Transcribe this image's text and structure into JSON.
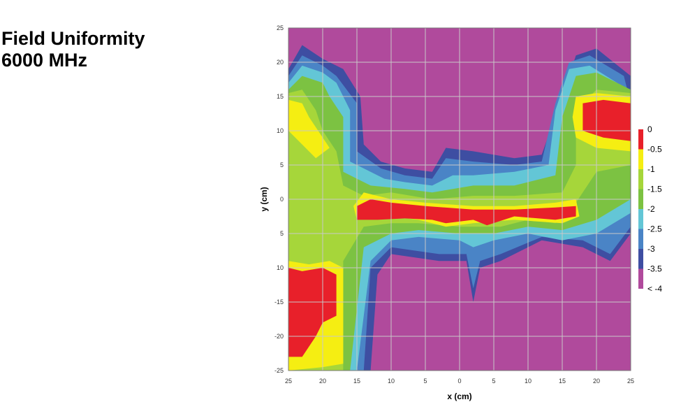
{
  "title": {
    "line1": "Field Uniformity",
    "line2": "6000 MHz"
  },
  "chart_data": {
    "type": "heatmap",
    "xlabel": "x (cm)",
    "ylabel": "y (cm)",
    "xlim": [
      -25,
      25
    ],
    "ylim": [
      -25,
      25
    ],
    "grid": true,
    "x_ticks": [
      "25",
      "20",
      "15",
      "10",
      "5",
      "0",
      "5",
      "10",
      "15",
      "20",
      "25"
    ],
    "y_ticks": [
      "25",
      "20",
      "15",
      "10",
      "5",
      "0",
      "5",
      "10",
      "-15",
      "-20",
      "-25"
    ],
    "legend_position": "right",
    "levels": [
      {
        "label": "0",
        "color": "#e8202a"
      },
      {
        "label": "-0.5",
        "color": "#f5ee12"
      },
      {
        "label": "-1",
        "color": "#a6d63a"
      },
      {
        "label": "-1.5",
        "color": "#7cc242"
      },
      {
        "label": "-2",
        "color": "#63c6d6"
      },
      {
        "label": "-2.5",
        "color": "#4a84c6"
      },
      {
        "label": "-3",
        "color": "#3e4ea2"
      },
      {
        "label": "-3.5",
        "color": "#b04a9c"
      },
      {
        "label": "< -4",
        "color": "#b04a9c"
      }
    ],
    "regions": [
      {
        "level": "-3",
        "points": [
          [
            -25,
            19
          ],
          [
            -23,
            22.5
          ],
          [
            -20,
            20.5
          ],
          [
            -17,
            19
          ],
          [
            -14.5,
            15
          ],
          [
            -14,
            8
          ],
          [
            -11.5,
            5.5
          ],
          [
            -8,
            4.5
          ],
          [
            -4,
            4
          ],
          [
            -2,
            7.5
          ],
          [
            2,
            7
          ],
          [
            8,
            6
          ],
          [
            12,
            6.5
          ],
          [
            15,
            15
          ],
          [
            17,
            21
          ],
          [
            20,
            22
          ],
          [
            25,
            18
          ],
          [
            25,
            -5
          ],
          [
            22,
            -9
          ],
          [
            18,
            -7
          ],
          [
            12,
            -6
          ],
          [
            6,
            -9
          ],
          [
            3,
            -10
          ],
          [
            2,
            -15
          ],
          [
            1,
            -9
          ],
          [
            -3,
            -9
          ],
          [
            -10,
            -8
          ],
          [
            -12,
            -11
          ],
          [
            -13,
            -25
          ],
          [
            -25,
            -25
          ]
        ]
      },
      {
        "level": "-2.5",
        "points": [
          [
            -25,
            18
          ],
          [
            -23,
            21
          ],
          [
            -20,
            19.5
          ],
          [
            -18,
            18
          ],
          [
            -15,
            14
          ],
          [
            -15,
            7
          ],
          [
            -11.5,
            4.5
          ],
          [
            -8,
            3.5
          ],
          [
            -4,
            3
          ],
          [
            -2,
            6
          ],
          [
            2,
            5.5
          ],
          [
            8,
            5
          ],
          [
            12,
            5.5
          ],
          [
            14,
            14
          ],
          [
            16,
            20
          ],
          [
            19,
            21
          ],
          [
            24,
            18
          ],
          [
            25,
            14
          ],
          [
            25,
            -4
          ],
          [
            22,
            -8
          ],
          [
            18,
            -6
          ],
          [
            12,
            -5.5
          ],
          [
            6,
            -8
          ],
          [
            3,
            -9
          ],
          [
            2,
            -13
          ],
          [
            1,
            -8
          ],
          [
            -3,
            -8
          ],
          [
            -10,
            -7
          ],
          [
            -13,
            -10
          ],
          [
            -14,
            -25
          ],
          [
            -25,
            -25
          ]
        ]
      },
      {
        "level": "-2",
        "points": [
          [
            -25,
            17
          ],
          [
            -23,
            19.5
          ],
          [
            -20,
            18.5
          ],
          [
            -18,
            17
          ],
          [
            -16,
            13
          ],
          [
            -16,
            5.5
          ],
          [
            -11,
            3
          ],
          [
            -8,
            2.5
          ],
          [
            -4,
            2
          ],
          [
            -1,
            3.5
          ],
          [
            2,
            3.5
          ],
          [
            8,
            4
          ],
          [
            13,
            5
          ],
          [
            14,
            13
          ],
          [
            16,
            19
          ],
          [
            19,
            19.5
          ],
          [
            23,
            17
          ],
          [
            25,
            14
          ],
          [
            25,
            -2
          ],
          [
            20,
            -5
          ],
          [
            15,
            -6
          ],
          [
            10,
            -5
          ],
          [
            5,
            -6
          ],
          [
            2,
            -7
          ],
          [
            0,
            -6
          ],
          [
            -6,
            -5.5
          ],
          [
            -10,
            -6
          ],
          [
            -13,
            -9
          ],
          [
            -15,
            -25
          ],
          [
            -25,
            -25
          ]
        ]
      },
      {
        "level": "-1.5",
        "points": [
          [
            -25,
            16
          ],
          [
            -23,
            18
          ],
          [
            -20,
            17
          ],
          [
            -19,
            15
          ],
          [
            -17,
            12
          ],
          [
            -17,
            4
          ],
          [
            -13,
            2
          ],
          [
            -8,
            1.5
          ],
          [
            -4,
            1
          ],
          [
            2,
            2
          ],
          [
            8,
            2
          ],
          [
            14,
            3.5
          ],
          [
            15,
            12
          ],
          [
            17,
            18
          ],
          [
            20,
            18.5
          ],
          [
            25,
            16
          ],
          [
            25,
            0
          ],
          [
            20,
            -3
          ],
          [
            15,
            -4.5
          ],
          [
            10,
            -4
          ],
          [
            5,
            -5
          ],
          [
            0,
            -5
          ],
          [
            -6,
            -4.5
          ],
          [
            -10,
            -5
          ],
          [
            -14,
            -7
          ],
          [
            -16,
            -25
          ],
          [
            -25,
            -25
          ]
        ]
      },
      {
        "level": "-1",
        "points": [
          [
            -25,
            15.5
          ],
          [
            -23,
            16
          ],
          [
            -21,
            13
          ],
          [
            -20,
            10
          ],
          [
            -18,
            7
          ],
          [
            -17,
            2
          ],
          [
            -14,
            0.5
          ],
          [
            -10,
            1
          ],
          [
            -4,
            0
          ],
          [
            2,
            0.5
          ],
          [
            8,
            0.5
          ],
          [
            15,
            1
          ],
          [
            17,
            5
          ],
          [
            17,
            13
          ],
          [
            20,
            16
          ],
          [
            25,
            15.5
          ],
          [
            25,
            5
          ],
          [
            20,
            4
          ],
          [
            16,
            -2
          ],
          [
            14,
            -3.5
          ],
          [
            10,
            -3
          ],
          [
            6,
            -4
          ],
          [
            0,
            -4
          ],
          [
            -6,
            -3.5
          ],
          [
            -10,
            -3.5
          ],
          [
            -14,
            -4
          ],
          [
            -17,
            -9
          ],
          [
            -17,
            -25
          ],
          [
            -25,
            -25
          ]
        ]
      },
      {
        "level": "-0.5",
        "points": [
          [
            -25,
            14.5
          ],
          [
            -23,
            14
          ],
          [
            -22,
            12
          ],
          [
            -20,
            9
          ],
          [
            -19,
            7.5
          ],
          [
            -21,
            6
          ],
          [
            -23,
            8
          ],
          [
            -25,
            10
          ],
          [
            -25,
            14.5
          ]
        ]
      },
      {
        "level": "-0.5",
        "points": [
          [
            -14,
            1
          ],
          [
            -10,
            0
          ],
          [
            -5,
            -0.5
          ],
          [
            2,
            -1
          ],
          [
            8,
            -1
          ],
          [
            14,
            -0.5
          ],
          [
            17,
            0
          ],
          [
            17.5,
            -2.5
          ],
          [
            15,
            -3.5
          ],
          [
            8,
            -3
          ],
          [
            2,
            -3.5
          ],
          [
            -2,
            -4
          ],
          [
            -6,
            -3
          ],
          [
            -10,
            -2.5
          ],
          [
            -15,
            -3
          ],
          [
            -15.5,
            -1
          ]
        ]
      },
      {
        "level": "-0.5",
        "points": [
          [
            17,
            15
          ],
          [
            20,
            15.5
          ],
          [
            25,
            15
          ],
          [
            25,
            7
          ],
          [
            20,
            7.5
          ],
          [
            17,
            9
          ],
          [
            16.5,
            12
          ]
        ]
      },
      {
        "level": "-0.5",
        "points": [
          [
            -25,
            -9
          ],
          [
            -22,
            -9.5
          ],
          [
            -19,
            -9
          ],
          [
            -17,
            -10
          ],
          [
            -17,
            -24
          ],
          [
            -20,
            -24.5
          ],
          [
            -25,
            -25
          ]
        ]
      },
      {
        "level": "0",
        "points": [
          [
            -15,
            -1
          ],
          [
            -13,
            0
          ],
          [
            -10,
            -0.5
          ],
          [
            -5,
            -1
          ],
          [
            2,
            -1.5
          ],
          [
            8,
            -1.5
          ],
          [
            14,
            -1.2
          ],
          [
            17,
            -1
          ],
          [
            17,
            -2.5
          ],
          [
            14,
            -3
          ],
          [
            8,
            -2.5
          ],
          [
            4,
            -3.8
          ],
          [
            2,
            -3
          ],
          [
            -2,
            -3.5
          ],
          [
            -4,
            -3
          ],
          [
            -8,
            -2.8
          ],
          [
            -12,
            -3
          ],
          [
            -15,
            -3
          ]
        ]
      },
      {
        "level": "0",
        "points": [
          [
            18,
            14
          ],
          [
            21,
            14.5
          ],
          [
            25,
            14
          ],
          [
            25,
            8.5
          ],
          [
            21,
            9
          ],
          [
            18,
            10
          ]
        ]
      },
      {
        "level": "0",
        "points": [
          [
            -25,
            -10
          ],
          [
            -23,
            -10.5
          ],
          [
            -20,
            -10
          ],
          [
            -18,
            -11
          ],
          [
            -18,
            -17
          ],
          [
            -20,
            -18
          ],
          [
            -21,
            -20
          ],
          [
            -23,
            -23
          ],
          [
            -25,
            -23
          ]
        ]
      }
    ]
  }
}
